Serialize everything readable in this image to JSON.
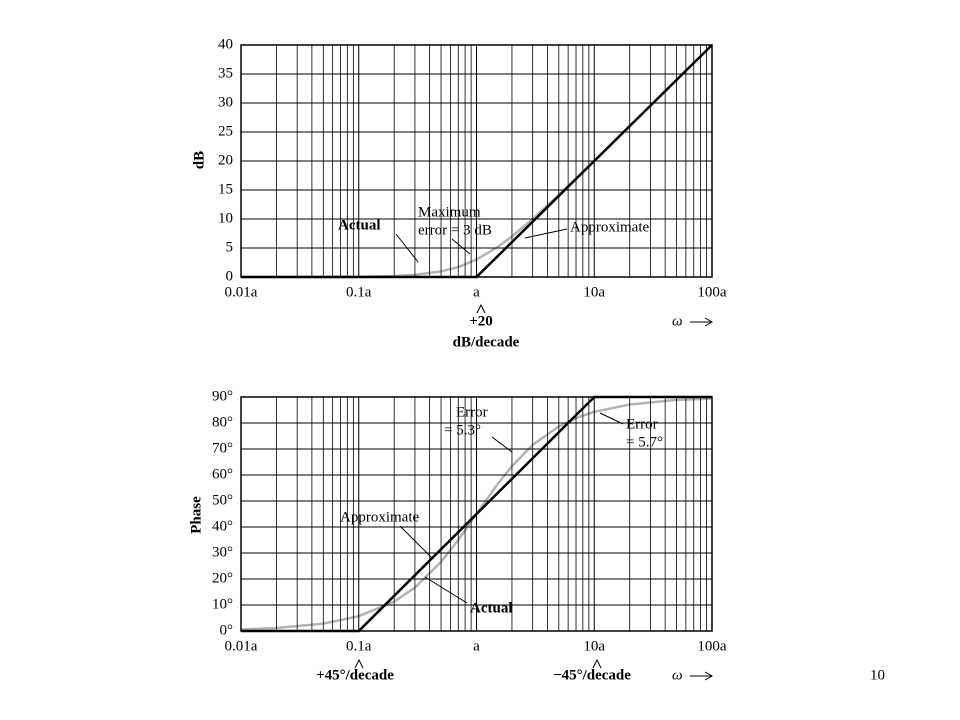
{
  "chart_data": [
    {
      "type": "line",
      "ylabel": "dB",
      "xlabel": "ω",
      "xscale": "log",
      "grid": true,
      "xlim": [
        0.01,
        100
      ],
      "ylim": [
        0,
        40
      ],
      "xticks": [
        {
          "value": 0.01,
          "label": "0.01a"
        },
        {
          "value": 0.1,
          "label": "0.1a"
        },
        {
          "value": 1,
          "label": "a"
        },
        {
          "value": 10,
          "label": "10a"
        },
        {
          "value": 100,
          "label": "100a"
        }
      ],
      "yticks": [
        0,
        5,
        10,
        15,
        20,
        25,
        30,
        35,
        40
      ],
      "series": [
        {
          "name": "Actual",
          "color": "#b3b3b3",
          "x": [
            0.01,
            0.1,
            0.2,
            0.3,
            0.5,
            0.7,
            1,
            1.5,
            2,
            3,
            5,
            7,
            10
          ],
          "values": [
            0,
            0.04,
            0.17,
            0.37,
            0.97,
            1.73,
            3.01,
            5.12,
            6.99,
            10.0,
            14.15,
            16.99,
            20.04
          ]
        },
        {
          "name": "Approximate",
          "color": "#000000",
          "x": [
            0.01,
            1,
            100
          ],
          "values": [
            0,
            0,
            40
          ]
        }
      ],
      "annotations": [
        "Maximum",
        "error = 3 dB",
        "+20",
        "dB/decade"
      ]
    },
    {
      "type": "line",
      "ylabel": "Phase",
      "xlabel": "ω",
      "xscale": "log",
      "grid": true,
      "xlim": [
        0.01,
        100
      ],
      "ylim": [
        0,
        90
      ],
      "xticks": [
        {
          "value": 0.01,
          "label": "0.01a"
        },
        {
          "value": 0.1,
          "label": "0.1a"
        },
        {
          "value": 1,
          "label": "a"
        },
        {
          "value": 10,
          "label": "10a"
        },
        {
          "value": 100,
          "label": "100a"
        }
      ],
      "yticks": [
        {
          "value": 0,
          "label": "0°"
        },
        {
          "value": 10,
          "label": "10°"
        },
        {
          "value": 20,
          "label": "20°"
        },
        {
          "value": 30,
          "label": "30°"
        },
        {
          "value": 40,
          "label": "40°"
        },
        {
          "value": 50,
          "label": "50°"
        },
        {
          "value": 60,
          "label": "60°"
        },
        {
          "value": 70,
          "label": "70°"
        },
        {
          "value": 80,
          "label": "80°"
        },
        {
          "value": 90,
          "label": "90°"
        }
      ],
      "series": [
        {
          "name": "Actual",
          "color": "#b3b3b3",
          "x": [
            0.01,
            0.02,
            0.05,
            0.1,
            0.2,
            0.3,
            0.5,
            0.7,
            1,
            1.5,
            2,
            3,
            5,
            7,
            10,
            20,
            50,
            100
          ],
          "values": [
            0.57,
            1.15,
            2.86,
            5.71,
            11.3,
            16.7,
            26.6,
            35,
            45,
            56.3,
            63.4,
            71.6,
            78.7,
            81.9,
            84.3,
            87.1,
            88.9,
            89.4
          ]
        },
        {
          "name": "Approximate",
          "color": "#000000",
          "x": [
            0.01,
            0.1,
            10,
            100
          ],
          "values": [
            0,
            0,
            90,
            90
          ]
        }
      ],
      "annotations": [
        "Error",
        "= 5.3°",
        "Error",
        "= 5.7°",
        "+45°/decade",
        "−45°/decade"
      ]
    }
  ],
  "page_number": "10"
}
